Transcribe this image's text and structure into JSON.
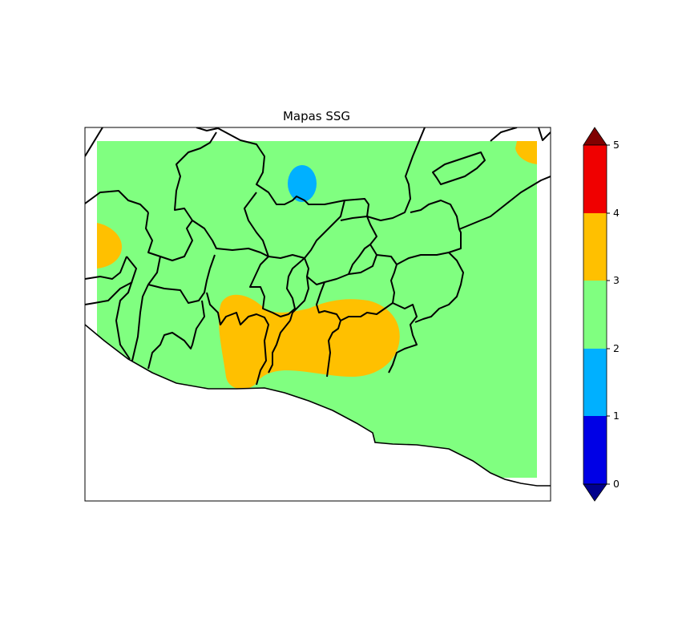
{
  "title": "Mapas SSG",
  "colorbar": {
    "ticks": [
      "0",
      "1",
      "2",
      "3",
      "4",
      "5"
    ],
    "levels": [
      {
        "range": [
          0,
          1
        ],
        "color": "#0000e6"
      },
      {
        "range": [
          1,
          2
        ],
        "color": "#00b0ff"
      },
      {
        "range": [
          2,
          3
        ],
        "color": "#80ff80"
      },
      {
        "range": [
          3,
          4
        ],
        "color": "#ffc000"
      },
      {
        "range": [
          4,
          5
        ],
        "color": "#f00000"
      }
    ],
    "under_color": "#00008c",
    "over_color": "#800000",
    "extend": "both"
  },
  "map": {
    "background_value_color": "#80ff80",
    "border_color": "#000000",
    "regions": [
      {
        "name": "west-edge-patch",
        "value_class": "3-4",
        "color": "#ffc000"
      },
      {
        "name": "northeast-corner-patch",
        "value_class": "3-4",
        "color": "#ffc000"
      },
      {
        "name": "north-central-patch",
        "value_class": "1-2",
        "color": "#00b0ff"
      },
      {
        "name": "south-central-patch",
        "value_class": "3-4",
        "color": "#ffc000"
      }
    ]
  }
}
